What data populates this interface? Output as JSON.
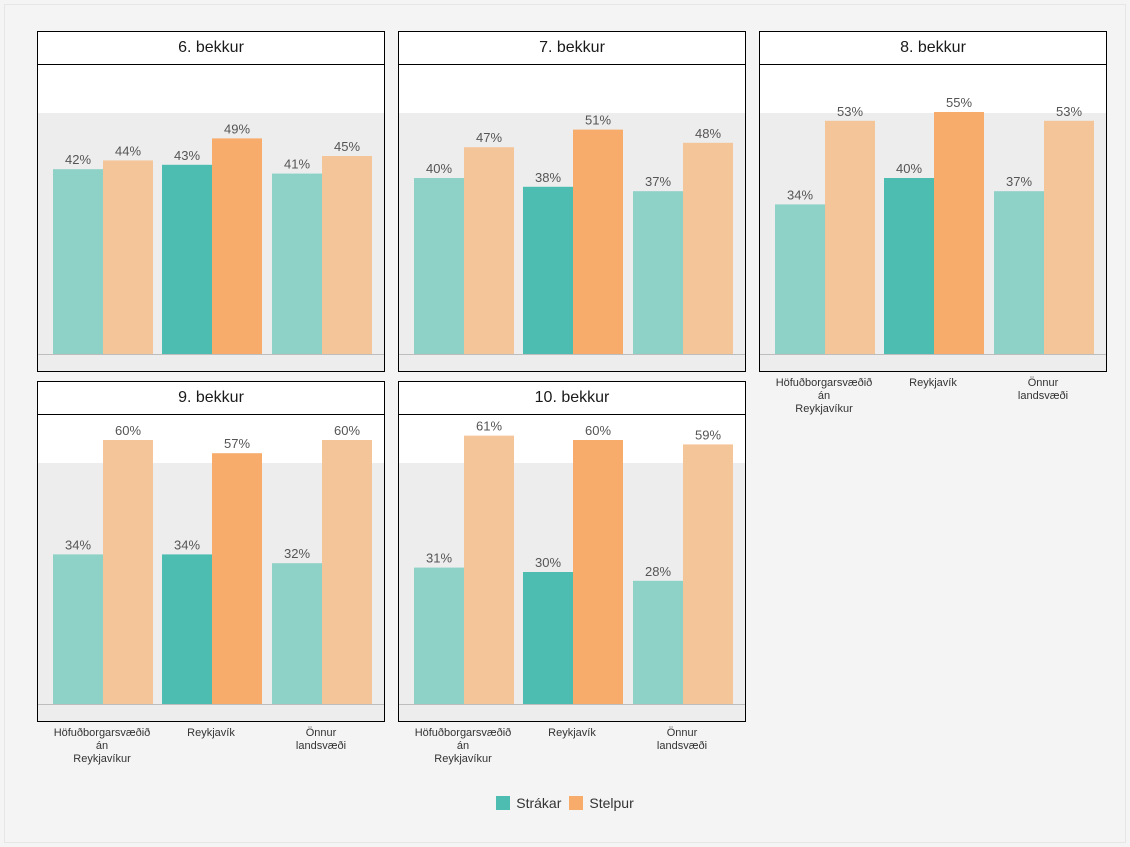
{
  "chart_data": {
    "type": "bar",
    "categories": [
      "Höfuðborgarsvæðið\nán\nReykjavíkur",
      "Reykjavík",
      "Önnur\nlandsvæði"
    ],
    "series_names": [
      "Strákar",
      "Stelpur"
    ],
    "ylim": [
      0,
      100
    ],
    "colors": {
      "strakar_light": "#8dd1c7",
      "strakar_dark": "#4dbdb2",
      "stelpur_light": "#f5c59a",
      "stelpur_dark": "#f7ac6c",
      "bg": "#ededed"
    },
    "panels": [
      {
        "title": "6. bekkur",
        "strakar": [
          42,
          43,
          41
        ],
        "stelpur": [
          44,
          49,
          45
        ]
      },
      {
        "title": "7. bekkur",
        "strakar": [
          40,
          38,
          37
        ],
        "stelpur": [
          47,
          51,
          48
        ]
      },
      {
        "title": "8. bekkur",
        "strakar": [
          34,
          40,
          37
        ],
        "stelpur": [
          53,
          55,
          53
        ]
      },
      {
        "title": "9. bekkur",
        "strakar": [
          34,
          34,
          32
        ],
        "stelpur": [
          60,
          57,
          60
        ]
      },
      {
        "title": "10. bekkur",
        "strakar": [
          31,
          30,
          28
        ],
        "stelpur": [
          61,
          60,
          59
        ]
      }
    ],
    "legend": [
      {
        "label": "Strákar",
        "color": "#4dbdb2"
      },
      {
        "label": "Stelpur",
        "color": "#f7ac6c"
      }
    ]
  }
}
